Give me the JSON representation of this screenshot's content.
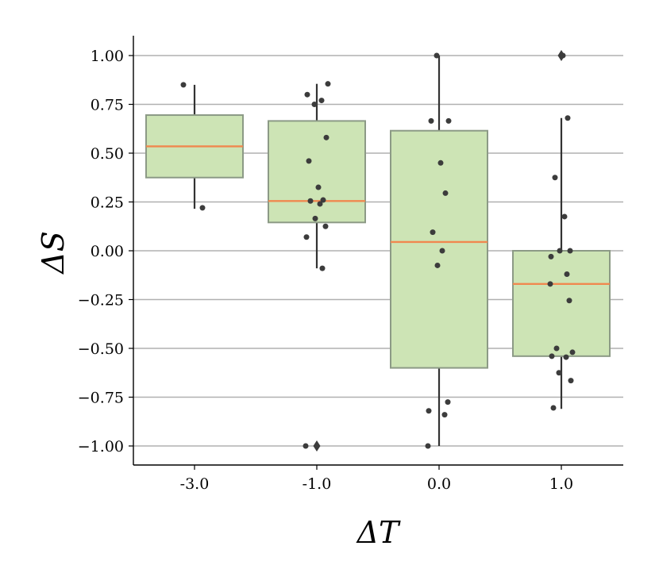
{
  "chart_data": {
    "type": "boxplot",
    "xlabel": "ΔT",
    "ylabel": "ΔS",
    "categories": [
      "-3.0",
      "-1.0",
      "0.0",
      "1.0"
    ],
    "ylim": [
      -1.1,
      1.1
    ],
    "yticks": [
      1.0,
      0.75,
      0.5,
      0.25,
      0.0,
      -0.25,
      -0.5,
      -0.75,
      -1.0
    ],
    "ytick_labels": [
      "1.00",
      "0.75",
      "0.50",
      "0.25",
      "0.00",
      "−0.25",
      "−0.50",
      "−0.75",
      "−1.00"
    ],
    "grid": "horizontal",
    "colors": {
      "box_fill": "#cde4b5",
      "box_edge": "#8c9a86",
      "median": "#f0884f",
      "whisker": "#333333",
      "point": "#3c3c3c",
      "grid": "#b0b0b0"
    },
    "boxes": [
      {
        "category": "-3.0",
        "q1": 0.375,
        "median": 0.535,
        "q3": 0.695,
        "whisker_low": 0.215,
        "whisker_high": 0.85,
        "outliers": [],
        "points": [
          0.85,
          0.22
        ]
      },
      {
        "category": "-1.0",
        "q1": 0.145,
        "median": 0.255,
        "q3": 0.665,
        "whisker_low": -0.09,
        "whisker_high": 0.855,
        "outliers": [
          -1.0
        ],
        "points": [
          0.855,
          0.8,
          0.77,
          0.75,
          0.58,
          0.46,
          0.325,
          0.26,
          0.255,
          0.24,
          0.165,
          0.125,
          0.07,
          -0.09,
          -1.0
        ]
      },
      {
        "category": "0.0",
        "q1": -0.6,
        "median": 0.045,
        "q3": 0.615,
        "whisker_low": -1.0,
        "whisker_high": 1.0,
        "outliers": [],
        "points": [
          1.0,
          0.665,
          0.665,
          0.45,
          0.295,
          0.095,
          0.0,
          -0.075,
          -0.775,
          -0.82,
          -0.84,
          -1.0
        ]
      },
      {
        "category": "1.0",
        "q1": -0.54,
        "median": -0.17,
        "q3": 0.0,
        "whisker_low": -0.81,
        "whisker_high": 0.68,
        "outliers": [
          1.0
        ],
        "points": [
          1.0,
          0.68,
          0.375,
          0.175,
          0.0,
          0.0,
          -0.03,
          -0.12,
          -0.17,
          -0.255,
          -0.5,
          -0.52,
          -0.54,
          -0.545,
          -0.625,
          -0.665,
          -0.805
        ]
      }
    ]
  }
}
